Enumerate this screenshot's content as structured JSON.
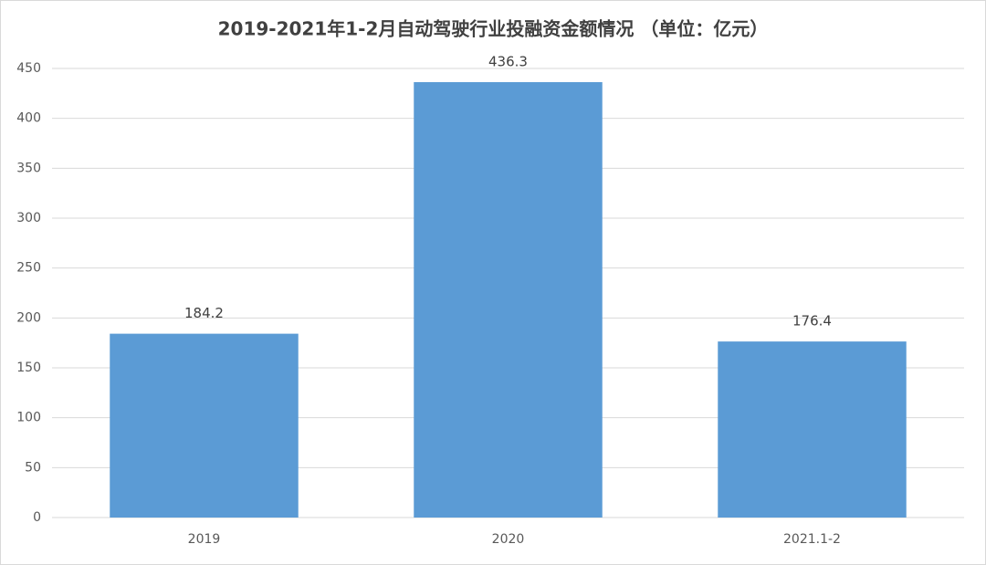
{
  "chart_data": {
    "type": "bar",
    "title": "2019-2021年1-2月自动驾驶行业投融资金额情况 （单位：亿元）",
    "categories": [
      "2019",
      "2020",
      "2021.1-2"
    ],
    "values": [
      184.2,
      436.3,
      176.4
    ],
    "color": "#5b9bd5",
    "ylim": [
      0,
      450
    ],
    "yticks": [
      0,
      50,
      100,
      150,
      200,
      250,
      300,
      350,
      400,
      450
    ],
    "grid": true
  }
}
